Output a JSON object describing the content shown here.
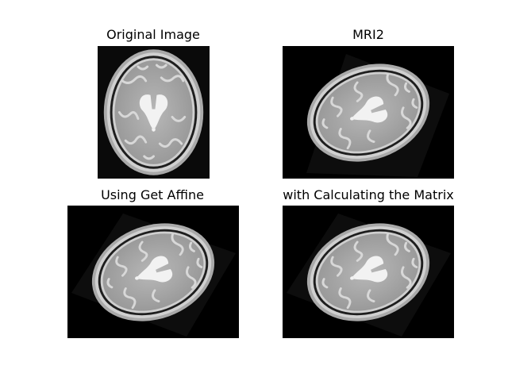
{
  "figure": {
    "panels": [
      {
        "title": "Original Image",
        "image": "brain-mri-axial-slice"
      },
      {
        "title": "MRI2",
        "image": "brain-mri-rotated"
      },
      {
        "title": "Using Get Affine",
        "image": "brain-mri-affine-result"
      },
      {
        "title": "with Calculating the Matrix",
        "image": "brain-mri-matrix-result"
      }
    ]
  }
}
